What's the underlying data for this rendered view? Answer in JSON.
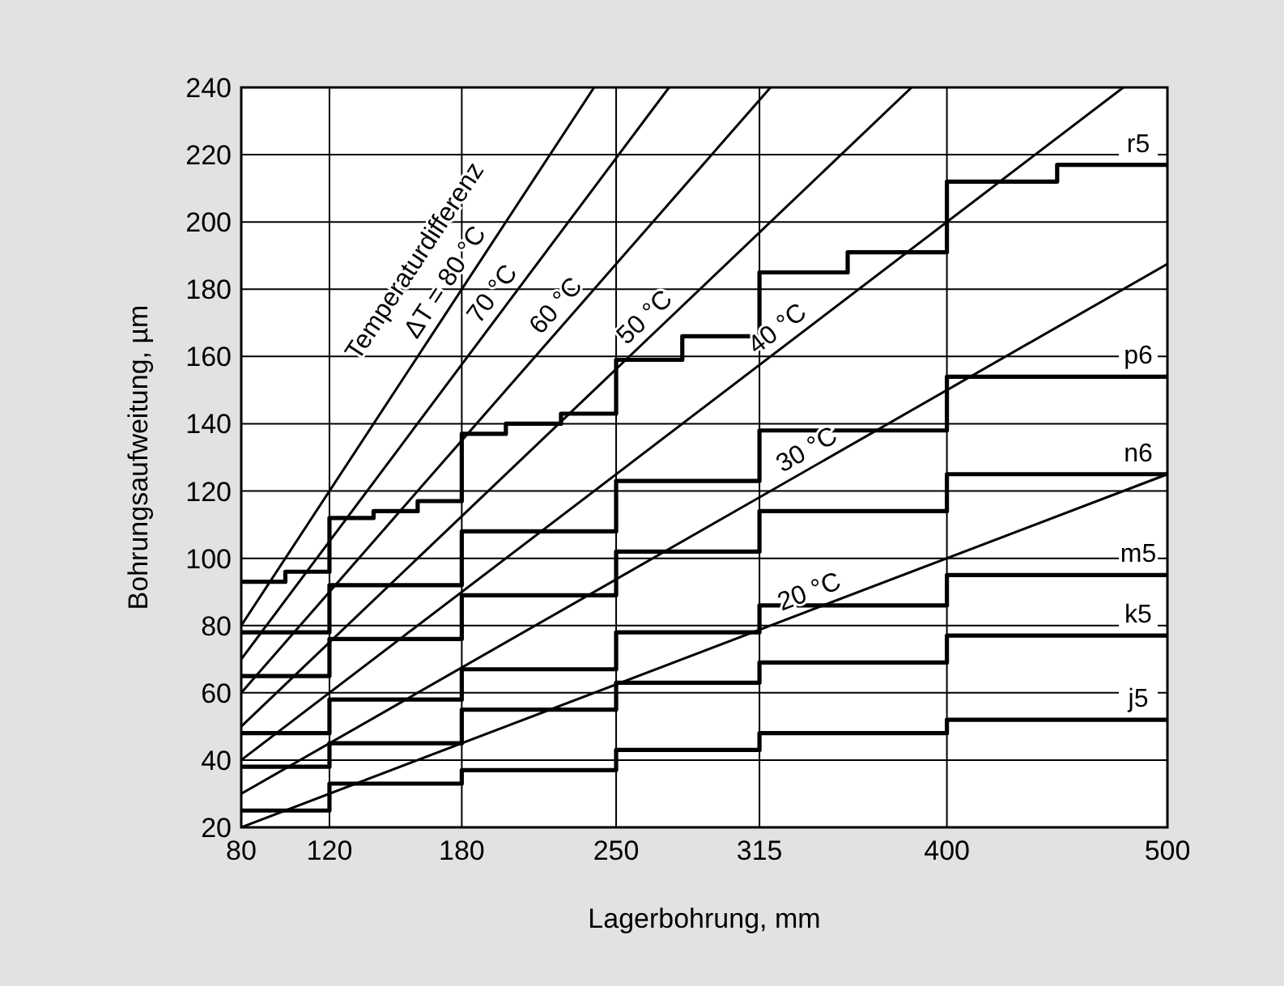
{
  "chart_data": {
    "type": "line",
    "xlabel": "Lagerbohrung, mm",
    "ylabel": "Bohrungsaufweitung, µm",
    "xlim": [
      80,
      500
    ],
    "xticks": [
      80,
      120,
      180,
      250,
      315,
      400,
      500
    ],
    "ylim": [
      20,
      240
    ],
    "yticks": [
      20,
      40,
      60,
      80,
      100,
      120,
      140,
      160,
      180,
      200,
      220,
      240
    ],
    "grid": true,
    "annotations": [
      "Temperaturdifferenz"
    ],
    "series": [
      {
        "name": "r5",
        "type": "step",
        "color": "#000000",
        "x": [
          80,
          100,
          120,
          140,
          160,
          180,
          200,
          225,
          250,
          280,
          315,
          355,
          400,
          450,
          500
        ],
        "values": [
          93,
          96,
          112,
          114,
          117,
          137,
          140,
          143,
          159,
          166,
          185,
          191,
          212,
          217,
          217
        ]
      },
      {
        "name": "p6",
        "type": "step",
        "color": "#000000",
        "x": [
          80,
          120,
          180,
          250,
          315,
          400,
          500
        ],
        "values": [
          78,
          92,
          108,
          123,
          138,
          154,
          154
        ]
      },
      {
        "name": "n6",
        "type": "step",
        "color": "#000000",
        "x": [
          80,
          120,
          180,
          250,
          315,
          400,
          500
        ],
        "values": [
          65,
          76,
          89,
          102,
          114,
          125,
          125
        ]
      },
      {
        "name": "m5",
        "type": "step",
        "color": "#000000",
        "x": [
          80,
          120,
          180,
          250,
          315,
          400,
          500
        ],
        "values": [
          48,
          58,
          67,
          78,
          86,
          95,
          95
        ]
      },
      {
        "name": "k5",
        "type": "step",
        "color": "#000000",
        "x": [
          80,
          120,
          180,
          250,
          315,
          400,
          500
        ],
        "values": [
          38,
          45,
          55,
          63,
          69,
          77,
          77
        ]
      },
      {
        "name": "j5",
        "type": "step",
        "color": "#000000",
        "x": [
          80,
          120,
          180,
          250,
          315,
          400,
          500
        ],
        "values": [
          25,
          33,
          37,
          43,
          48,
          52,
          52
        ]
      },
      {
        "name": "ΔT = 80 °C",
        "color": "#000000",
        "x": [
          80,
          240
        ],
        "values": [
          80,
          240
        ]
      },
      {
        "name": "70 °C",
        "color": "#000000",
        "x": [
          80,
          274
        ],
        "values": [
          70,
          240
        ]
      },
      {
        "name": "60 °C",
        "color": "#000000",
        "x": [
          80,
          320
        ],
        "values": [
          60,
          240
        ]
      },
      {
        "name": "50 °C",
        "color": "#000000",
        "x": [
          80,
          384
        ],
        "values": [
          50,
          240
        ]
      },
      {
        "name": "40 °C",
        "color": "#000000",
        "x": [
          80,
          480
        ],
        "values": [
          40,
          240
        ]
      },
      {
        "name": "30 °C",
        "color": "#000000",
        "x": [
          80,
          500
        ],
        "values": [
          30,
          187.5
        ]
      },
      {
        "name": "20 °C",
        "color": "#000000",
        "x": [
          80,
          500
        ],
        "values": [
          20,
          125
        ]
      }
    ]
  }
}
